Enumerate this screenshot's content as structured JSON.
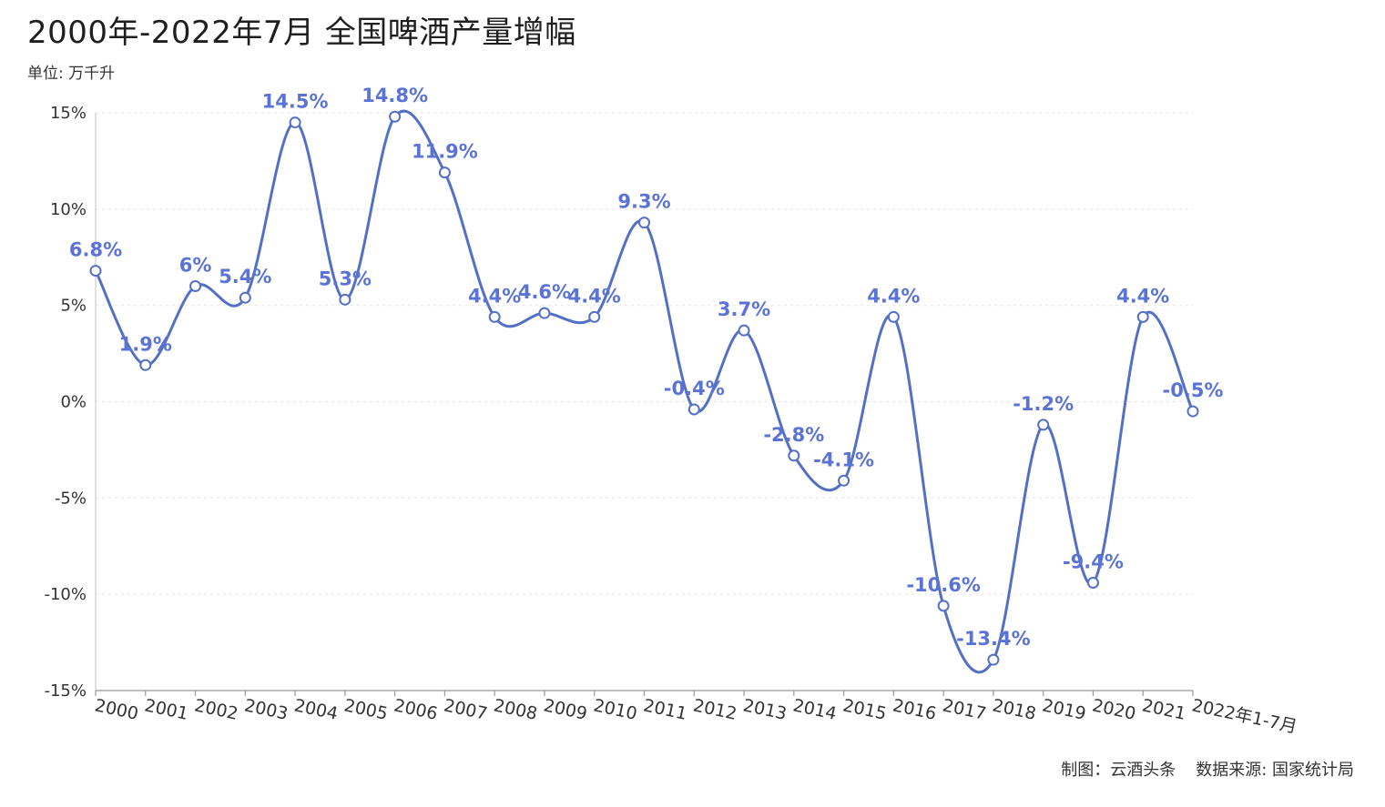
{
  "header": {
    "title": "2000年-2022年7月 全国啤酒产量增幅",
    "unit": "单位: 万千升"
  },
  "footer": {
    "maker": "制图：云酒头条",
    "source": "数据来源: 国家统计局"
  },
  "colors": {
    "line": "#5470c6",
    "label": "#5b73d6",
    "grid": "#e6e6e6"
  },
  "chart_data": {
    "type": "line",
    "title": "2000年-2022年7月 全国啤酒产量增幅",
    "xlabel": "",
    "ylabel": "",
    "categories": [
      "2000",
      "2001",
      "2002",
      "2003",
      "2004",
      "2005",
      "2006",
      "2007",
      "2008",
      "2009",
      "2010",
      "2011",
      "2012",
      "2013",
      "2014",
      "2015",
      "2016",
      "2017",
      "2018",
      "2019",
      "2020",
      "2021",
      "2022年1-7月"
    ],
    "series": [
      {
        "values": [
          6.8,
          1.9,
          6,
          5.4,
          14.5,
          5.3,
          14.8,
          11.9,
          4.4,
          4.6,
          4.4,
          9.3,
          -0.4,
          3.7,
          -2.8,
          -4.1,
          4.4,
          -10.6,
          -13.4,
          -1.2,
          -9.4,
          4.4,
          -0.5
        ],
        "labels": [
          "6.8%",
          "1.9%",
          "6%",
          "5.4%",
          "14.5%",
          "5.3%",
          "14.8%",
          "11.9%",
          "4.4%",
          "4.6%",
          "4.4%",
          "9.3%",
          "-0.4%",
          "3.7%",
          "-2.8%",
          "-4.1%",
          "4.4%",
          "-10.6%",
          "-13.4%",
          "-1.2%",
          "-9.4%",
          "4.4%",
          "-0.5%"
        ]
      }
    ],
    "ylim": [
      -15,
      15
    ],
    "yticks": [
      15,
      10,
      5,
      0,
      -5,
      -10,
      -15
    ],
    "ytick_labels": [
      "15%",
      "10%",
      "5%",
      "0%",
      "-5%",
      "-10%",
      "-15%"
    ],
    "grid": true,
    "smooth": true,
    "markers": "hollow-circle"
  }
}
